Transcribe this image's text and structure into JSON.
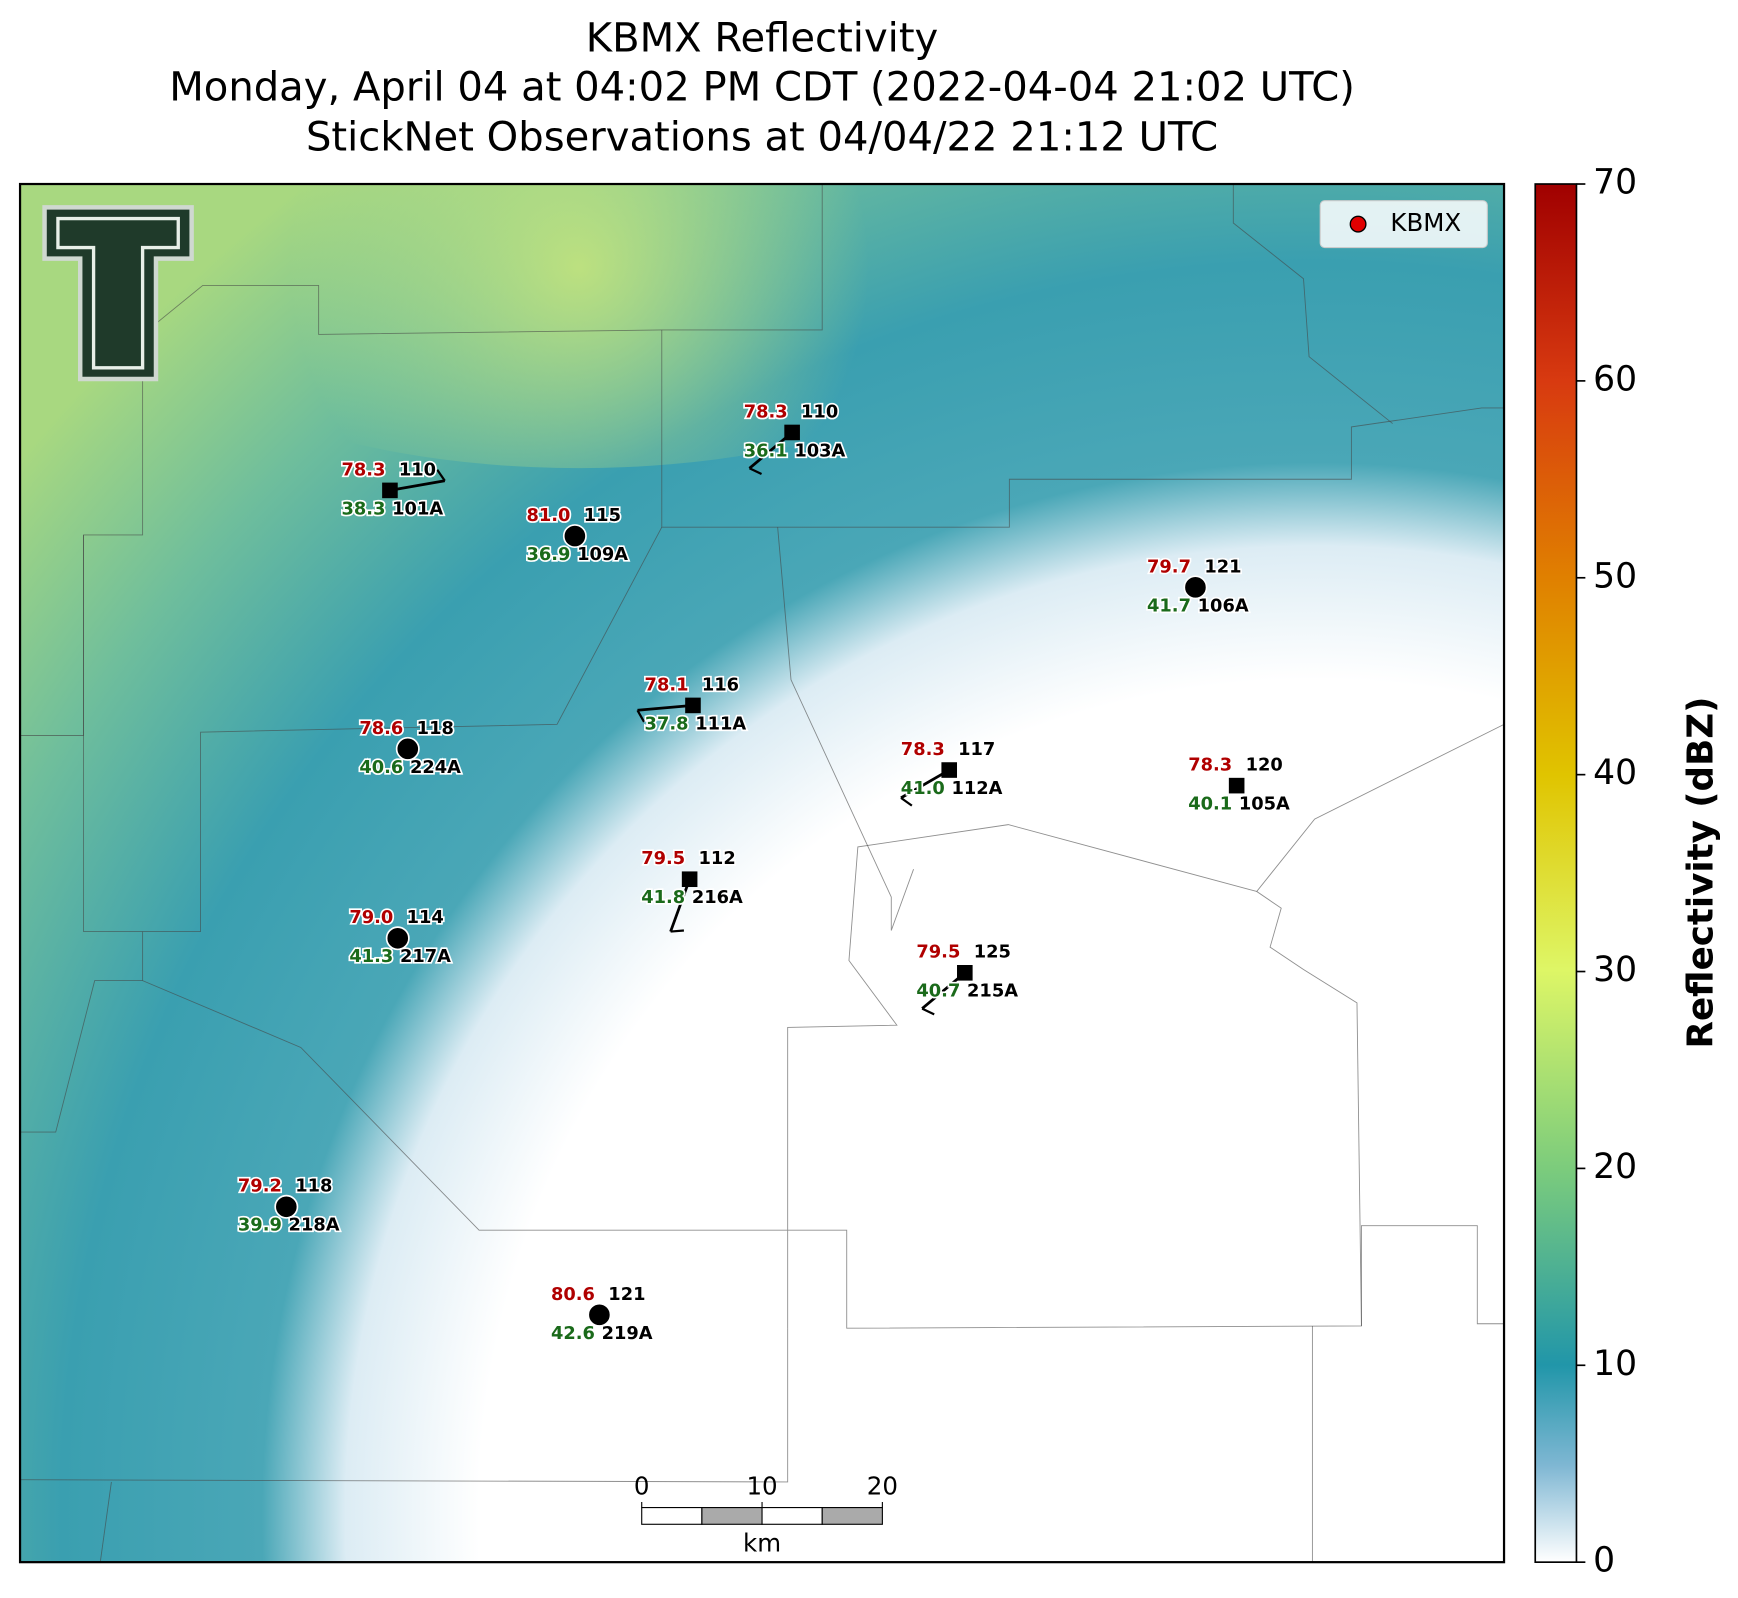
{
  "header": {
    "title": "KBMX Reflectivity",
    "subtitle": "Monday, April 04 at 04:02 PM CDT (2022-04-04 21:02 UTC)",
    "observations": "StickNet Observations at 04/04/22 21:12 UTC"
  },
  "legend": {
    "label": "KBMX",
    "color": "#e00000"
  },
  "stations": [
    {
      "id": "101A",
      "temperature": "78.3",
      "dewpoint": "38.3",
      "value": "110",
      "marker": "square"
    },
    {
      "id": "109A",
      "temperature": "81.0",
      "dewpoint": "36.9",
      "value": "115",
      "marker": "circle"
    },
    {
      "id": "103A",
      "temperature": "78.3",
      "dewpoint": "36.1",
      "value": "110",
      "marker": "square"
    },
    {
      "id": "106A",
      "temperature": "79.7",
      "dewpoint": "41.7",
      "value": "121",
      "marker": "circle"
    },
    {
      "id": "111A",
      "temperature": "78.1",
      "dewpoint": "37.8",
      "value": "116",
      "marker": "square"
    },
    {
      "id": "224A",
      "temperature": "78.6",
      "dewpoint": "40.6",
      "value": "118",
      "marker": "circle"
    },
    {
      "id": "112A",
      "temperature": "78.3",
      "dewpoint": "41.0",
      "value": "117",
      "marker": "square"
    },
    {
      "id": "105A",
      "temperature": "78.3",
      "dewpoint": "40.1",
      "value": "120",
      "marker": "square"
    },
    {
      "id": "216A",
      "temperature": "79.5",
      "dewpoint": "41.8",
      "value": "112",
      "marker": "square"
    },
    {
      "id": "217A",
      "temperature": "79.0",
      "dewpoint": "41.3",
      "value": "114",
      "marker": "circle"
    },
    {
      "id": "215A",
      "temperature": "79.5",
      "dewpoint": "40.7",
      "value": "125",
      "marker": "square"
    },
    {
      "id": "218A",
      "temperature": "79.2",
      "dewpoint": "39.9",
      "value": "118",
      "marker": "circle"
    },
    {
      "id": "219A",
      "temperature": "80.6",
      "dewpoint": "42.6",
      "value": "121",
      "marker": "circle"
    }
  ],
  "colorbar": {
    "label": "Reflectivity (dBZ)",
    "lim": [
      0,
      70
    ],
    "ticks": [
      0,
      10,
      20,
      30,
      40,
      50,
      60,
      70
    ]
  },
  "scale_bar": {
    "ticks": [
      0,
      10,
      20
    ],
    "unit": "km"
  }
}
